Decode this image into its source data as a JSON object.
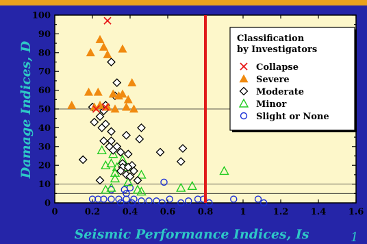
{
  "page_number": "1",
  "chart_data": {
    "type": "scatter",
    "xlabel": "Seismic Performance Indices, Is",
    "ylabel": "Damage Indices, D",
    "xlim": [
      0,
      1.6
    ],
    "ylim": [
      0,
      100
    ],
    "xticks": [
      0,
      0.2,
      0.4,
      0.6,
      0.8,
      1.0,
      1.2,
      1.4,
      1.6
    ],
    "xtick_labels": [
      "0",
      "0.2",
      "0.4",
      "0.6",
      "0.8",
      "1",
      "1.2",
      "1.4",
      "1.6"
    ],
    "yticks": [
      0,
      10,
      20,
      30,
      40,
      50,
      60,
      70,
      80,
      90,
      100
    ],
    "ytick_labels": [
      "0",
      "10",
      "20",
      "30",
      "40",
      "50",
      "60",
      "70",
      "80",
      "90",
      "100"
    ],
    "reference_lines": {
      "horizontal": [
        5,
        10,
        50
      ],
      "vertical": [
        0.8
      ]
    },
    "colors": {
      "plot_bg": "#fdf7ca",
      "collapse": "#e81818",
      "severe": "#f08a10",
      "moderate": "#000000",
      "minor": "#22cc22",
      "slight": "#1a2fd6",
      "vline": "#e01b1b"
    },
    "legend": {
      "title_lines": [
        "Classification",
        "by Investigators"
      ],
      "position": "top-right"
    },
    "series": [
      {
        "name": "Collapse",
        "marker": "x",
        "points": [
          [
            0.28,
            97
          ],
          [
            0.22,
            50
          ],
          [
            0.27,
            51
          ]
        ]
      },
      {
        "name": "Severe",
        "marker": "triangle",
        "points": [
          [
            0.24,
            87
          ],
          [
            0.26,
            83
          ],
          [
            0.19,
            80
          ],
          [
            0.28,
            79
          ],
          [
            0.36,
            82
          ],
          [
            0.18,
            59
          ],
          [
            0.23,
            59
          ],
          [
            0.31,
            58
          ],
          [
            0.36,
            58
          ],
          [
            0.34,
            57
          ],
          [
            0.39,
            55
          ],
          [
            0.41,
            64
          ],
          [
            0.09,
            52
          ],
          [
            0.21,
            51
          ],
          [
            0.24,
            52
          ],
          [
            0.28,
            51
          ],
          [
            0.32,
            50
          ],
          [
            0.38,
            51
          ],
          [
            0.42,
            50
          ]
        ]
      },
      {
        "name": "Moderate",
        "marker": "diamond",
        "points": [
          [
            0.3,
            75
          ],
          [
            0.33,
            64
          ],
          [
            0.32,
            57
          ],
          [
            0.27,
            52
          ],
          [
            0.26,
            49
          ],
          [
            0.2,
            51
          ],
          [
            0.24,
            46
          ],
          [
            0.21,
            43
          ],
          [
            0.27,
            42
          ],
          [
            0.25,
            40
          ],
          [
            0.3,
            38
          ],
          [
            0.38,
            36
          ],
          [
            0.46,
            40
          ],
          [
            0.26,
            33
          ],
          [
            0.3,
            33
          ],
          [
            0.33,
            30
          ],
          [
            0.45,
            34
          ],
          [
            0.29,
            30
          ],
          [
            0.31,
            28
          ],
          [
            0.35,
            27
          ],
          [
            0.56,
            27
          ],
          [
            0.68,
            29
          ],
          [
            0.39,
            26
          ],
          [
            0.15,
            23
          ],
          [
            0.36,
            21
          ],
          [
            0.41,
            20
          ],
          [
            0.36,
            19
          ],
          [
            0.39,
            19
          ],
          [
            0.67,
            22
          ],
          [
            0.35,
            17
          ],
          [
            0.42,
            17
          ],
          [
            0.38,
            15
          ],
          [
            0.4,
            14
          ],
          [
            0.24,
            12
          ],
          [
            0.44,
            12
          ]
        ]
      },
      {
        "name": "Minor",
        "marker": "triangle-open",
        "points": [
          [
            0.25,
            28
          ],
          [
            0.31,
            26
          ],
          [
            0.36,
            23
          ],
          [
            0.27,
            20
          ],
          [
            0.3,
            21
          ],
          [
            0.33,
            19
          ],
          [
            0.38,
            19
          ],
          [
            0.32,
            16
          ],
          [
            0.46,
            15
          ],
          [
            0.32,
            13
          ],
          [
            0.39,
            11
          ],
          [
            0.27,
            7
          ],
          [
            0.3,
            8
          ],
          [
            0.44,
            7
          ],
          [
            0.46,
            6
          ],
          [
            0.67,
            8
          ],
          [
            0.73,
            9
          ],
          [
            0.9,
            17
          ]
        ]
      },
      {
        "name": "Slight or None",
        "marker": "circle-open",
        "points": [
          [
            0.58,
            11
          ],
          [
            0.37,
            7
          ],
          [
            0.4,
            8
          ],
          [
            0.3,
            7
          ],
          [
            0.38,
            5
          ],
          [
            0.2,
            2
          ],
          [
            0.23,
            2
          ],
          [
            0.26,
            2
          ],
          [
            0.3,
            2
          ],
          [
            0.34,
            2
          ],
          [
            0.38,
            2
          ],
          [
            0.42,
            2
          ],
          [
            0.46,
            1
          ],
          [
            0.5,
            1
          ],
          [
            0.54,
            1
          ],
          [
            0.57,
            0
          ],
          [
            0.61,
            2
          ],
          [
            0.67,
            0
          ],
          [
            0.71,
            1
          ],
          [
            0.76,
            2
          ],
          [
            0.79,
            2
          ],
          [
            0.82,
            0
          ],
          [
            0.95,
            2
          ],
          [
            1.08,
            2
          ],
          [
            1.11,
            0
          ],
          [
            0.35,
            0
          ],
          [
            0.41,
            0
          ]
        ]
      }
    ]
  }
}
